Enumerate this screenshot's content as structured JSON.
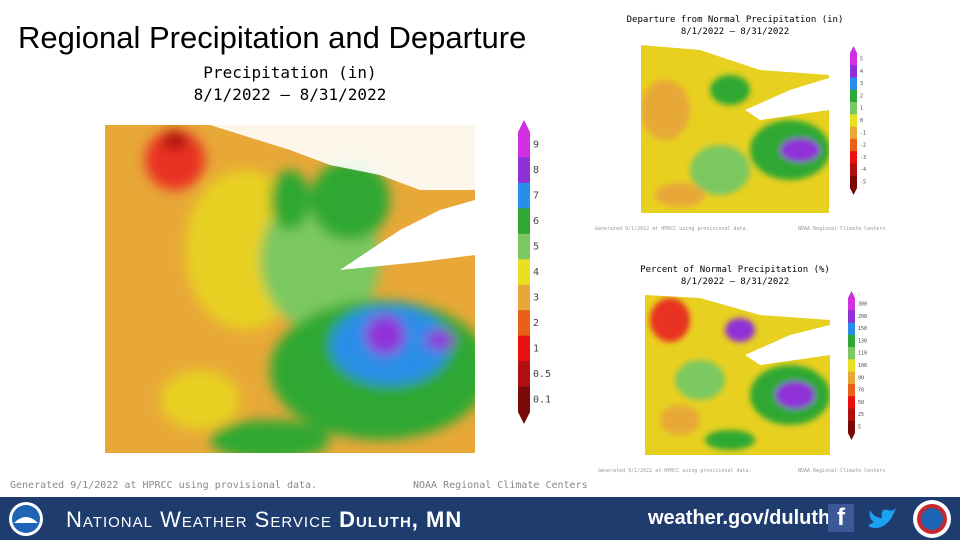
{
  "title": "Regional Precipitation and Departure",
  "main_map": {
    "title": "Precipitation (in)",
    "dates": "8/1/2022 – 8/31/2022",
    "legend": [
      "9",
      "8",
      "7",
      "6",
      "5",
      "4",
      "3",
      "2",
      "1",
      "0.5",
      "0.1"
    ],
    "footer_left": "Generated 9/1/2022 at HPRCC using provisional data.",
    "footer_right": "NOAA Regional Climate Centers"
  },
  "departure_map": {
    "title": "Departure from Normal Precipitation (in)",
    "dates": "8/1/2022 – 8/31/2022",
    "legend": [
      "5",
      "4",
      "3",
      "2",
      "1",
      "0",
      "-1",
      "-2",
      "-3",
      "-4",
      "-5"
    ],
    "footer_left": "Generated 9/1/2022 at HPRCC using provisional data.",
    "footer_right": "NOAA Regional Climate Centers"
  },
  "percent_map": {
    "title": "Percent of Normal Precipitation (%)",
    "dates": "8/1/2022 – 8/31/2022",
    "legend": [
      "300",
      "200",
      "150",
      "130",
      "110",
      "100",
      "90",
      "70",
      "50",
      "25",
      "5"
    ],
    "footer_left": "Generated 9/1/2022 at HPRCC using provisional data.",
    "footer_right": "NOAA Regional Climate Centers"
  },
  "banner": {
    "org": "National Weather Service",
    "office": "Duluth, MN",
    "url": "weather.gov/duluth"
  }
}
